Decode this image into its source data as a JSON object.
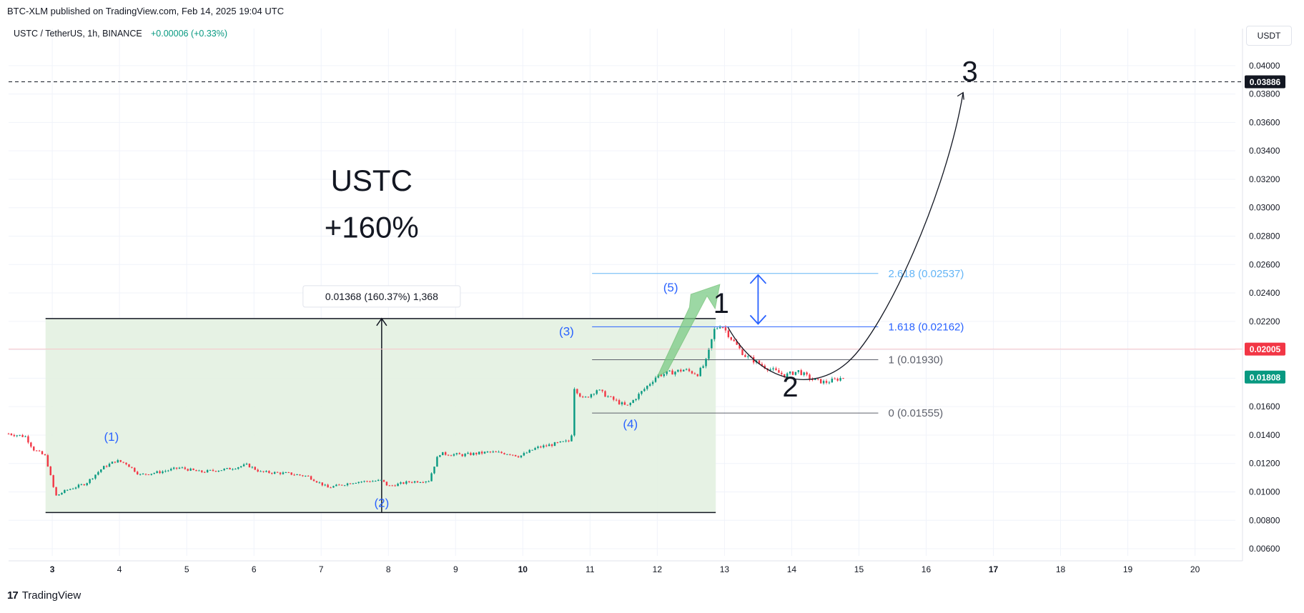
{
  "header": {
    "published": "BTC-XLM published on TradingView.com, Feb 14, 2025 19:04 UTC",
    "symbol": "USTC / TetherUS, 1h, BINANCE",
    "change": "+0.00006 (+0.33%)"
  },
  "currency_button": "USDT",
  "footer": {
    "brand_mark": "17",
    "brand": "TradingView"
  },
  "colors": {
    "up": "#089981",
    "down": "#f23645",
    "box_fill": "#e3f1e1",
    "fib_blue": "#2962ff",
    "fib_light": "#64b5f6",
    "wave_label": "#2962ff",
    "price_red": "#f23645",
    "price_green": "#089981"
  },
  "chart_data": {
    "type": "candlestick",
    "y_axis": {
      "min": 0.0055,
      "max": 0.0415,
      "ticks": [
        "0.04000",
        "0.03800",
        "0.03600",
        "0.03400",
        "0.03200",
        "0.03000",
        "0.02800",
        "0.02600",
        "0.02400",
        "0.02200",
        "0.02000",
        "0.01800",
        "0.01600",
        "0.01400",
        "0.01200",
        "0.01000",
        "0.00800",
        "0.00600"
      ]
    },
    "x_axis": {
      "min": 2.35,
      "max": 20.6,
      "ticks": [
        {
          "value": 3,
          "label": "3",
          "bold": true
        },
        {
          "value": 4,
          "label": "4",
          "bold": false
        },
        {
          "value": 5,
          "label": "5",
          "bold": false
        },
        {
          "value": 6,
          "label": "6",
          "bold": false
        },
        {
          "value": 7,
          "label": "7",
          "bold": false
        },
        {
          "value": 8,
          "label": "8",
          "bold": false
        },
        {
          "value": 9,
          "label": "9",
          "bold": false
        },
        {
          "value": 10,
          "label": "10",
          "bold": true
        },
        {
          "value": 11,
          "label": "11",
          "bold": false
        },
        {
          "value": 12,
          "label": "12",
          "bold": false
        },
        {
          "value": 13,
          "label": "13",
          "bold": false
        },
        {
          "value": 14,
          "label": "14",
          "bold": false
        },
        {
          "value": 15,
          "label": "15",
          "bold": false
        },
        {
          "value": 16,
          "label": "16",
          "bold": false
        },
        {
          "value": 17,
          "label": "17",
          "bold": true
        },
        {
          "value": 18,
          "label": "18",
          "bold": false
        },
        {
          "value": 19,
          "label": "19",
          "bold": false
        },
        {
          "value": 20,
          "label": "20",
          "bold": false
        }
      ]
    },
    "price_path": [
      [
        2.35,
        0.0141
      ],
      [
        2.6,
        0.0139
      ],
      [
        2.72,
        0.013
      ],
      [
        2.9,
        0.0125
      ],
      [
        3.05,
        0.0097
      ],
      [
        3.2,
        0.0101
      ],
      [
        3.5,
        0.0106
      ],
      [
        3.75,
        0.0117
      ],
      [
        3.95,
        0.0122
      ],
      [
        4.1,
        0.012
      ],
      [
        4.3,
        0.0112
      ],
      [
        4.6,
        0.0114
      ],
      [
        4.9,
        0.0117
      ],
      [
        5.2,
        0.0114
      ],
      [
        5.6,
        0.0116
      ],
      [
        5.9,
        0.0119
      ],
      [
        6.1,
        0.0114
      ],
      [
        6.5,
        0.0113
      ],
      [
        6.8,
        0.0111
      ],
      [
        7.1,
        0.0103
      ],
      [
        7.5,
        0.0107
      ],
      [
        7.9,
        0.0108
      ],
      [
        8.0,
        0.0104
      ],
      [
        8.3,
        0.0107
      ],
      [
        8.6,
        0.0108
      ],
      [
        8.75,
        0.0127
      ],
      [
        9.1,
        0.0126
      ],
      [
        9.5,
        0.0128
      ],
      [
        9.8,
        0.0127
      ],
      [
        9.95,
        0.0125
      ],
      [
        10.2,
        0.0131
      ],
      [
        10.5,
        0.0134
      ],
      [
        10.72,
        0.0136
      ],
      [
        10.76,
        0.0174
      ],
      [
        10.9,
        0.0165
      ],
      [
        11.1,
        0.0172
      ],
      [
        11.3,
        0.0166
      ],
      [
        11.55,
        0.016
      ],
      [
        11.8,
        0.0172
      ],
      [
        12.0,
        0.0182
      ],
      [
        12.2,
        0.0184
      ],
      [
        12.4,
        0.0186
      ],
      [
        12.6,
        0.0183
      ],
      [
        12.72,
        0.0191
      ],
      [
        12.78,
        0.0202
      ],
      [
        12.85,
        0.0214
      ],
      [
        12.95,
        0.0218
      ],
      [
        13.1,
        0.0208
      ],
      [
        13.3,
        0.0196
      ],
      [
        13.6,
        0.0188
      ],
      [
        13.9,
        0.0182
      ],
      [
        14.1,
        0.0185
      ],
      [
        14.3,
        0.0179
      ],
      [
        14.5,
        0.0177
      ],
      [
        14.8,
        0.0181
      ]
    ],
    "measure_box": {
      "x_start": 2.9,
      "x_end": 12.87,
      "y_low": 0.00855,
      "y_high": 0.0222,
      "arrow_x": 7.9
    },
    "measure_label": "0.01368 (160.37%) 1,368",
    "fib_levels": [
      {
        "label": "2.618 (0.02537)",
        "value": 0.02537,
        "tier": "light"
      },
      {
        "label": "1.618 (0.02162)",
        "value": 0.02162,
        "tier": "blue"
      },
      {
        "label": "1 (0.01930)",
        "value": 0.0193,
        "tier": "gray"
      },
      {
        "label": "0 (0.01555)",
        "value": 0.01555,
        "tier": "gray"
      }
    ],
    "fib_x": {
      "start": 11.03,
      "end": 15.5
    },
    "wave_labels": [
      {
        "label": "(1)",
        "x": 3.88,
        "y": 0.0136
      },
      {
        "label": "(2)",
        "x": 7.9,
        "y": 0.00895
      },
      {
        "label": "(3)",
        "x": 10.65,
        "y": 0.021
      },
      {
        "label": "(4)",
        "x": 11.6,
        "y": 0.0145
      },
      {
        "label": "(5)",
        "x": 12.2,
        "y": 0.0241
      }
    ],
    "big_labels": [
      {
        "label": "1",
        "x": 12.95,
        "y": 0.0226
      },
      {
        "label": "2",
        "x": 13.98,
        "y": 0.0167
      },
      {
        "label": "3",
        "x": 16.65,
        "y": 0.0389
      }
    ],
    "title_lines": [
      "USTC",
      "+160%"
    ],
    "title_x": 7.75,
    "title_y": [
      0.0312,
      0.0279
    ],
    "dashed_target": {
      "value": 0.03886,
      "label": "0.03886"
    },
    "prev_close": {
      "value": 0.02005,
      "label": "0.02005"
    },
    "last_price": {
      "value": 0.01808,
      "label": "0.01808"
    }
  }
}
